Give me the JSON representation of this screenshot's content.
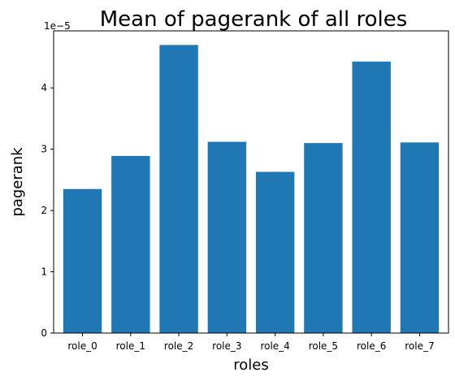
{
  "chart_data": {
    "type": "bar",
    "title": "Mean of pagerank of all roles",
    "xlabel": "roles",
    "ylabel": "pagerank",
    "y_offset_label": "1e−5",
    "categories": [
      "role_0",
      "role_1",
      "role_2",
      "role_3",
      "role_4",
      "role_5",
      "role_6",
      "role_7"
    ],
    "values": [
      2.35,
      2.89,
      4.7,
      3.12,
      2.63,
      3.1,
      4.43,
      3.11
    ],
    "value_scale": 1e-05,
    "ylim": [
      0,
      4.93
    ],
    "yticks": [
      0,
      1,
      2,
      3,
      4
    ],
    "ytick_labels": [
      "0",
      "1",
      "2",
      "3",
      "4"
    ],
    "grid": false,
    "legend": "none",
    "bar_color": "#1f77b4"
  }
}
